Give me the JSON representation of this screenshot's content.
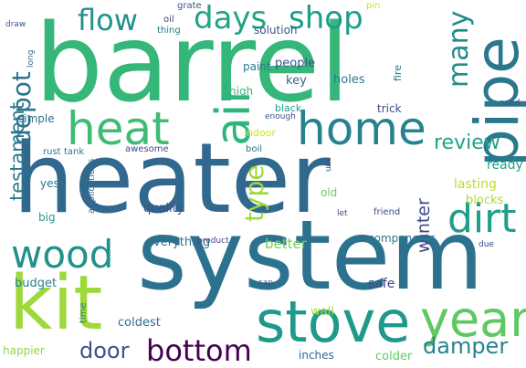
{
  "words": [
    {
      "text": "heater",
      "color": "#31688e"
    },
    {
      "text": "barrel",
      "color": "#35b779"
    },
    {
      "text": "system",
      "color": "#2c728e"
    },
    {
      "text": "kit",
      "color": "#9dd93b"
    },
    {
      "text": "stove",
      "color": "#1f9a8a"
    },
    {
      "text": "pipe",
      "color": "#2a788e"
    },
    {
      "text": "heat",
      "color": "#3fbc73"
    },
    {
      "text": "home",
      "color": "#26828e"
    },
    {
      "text": "air",
      "color": "#2fb47c"
    },
    {
      "text": "wood",
      "color": "#21918c"
    },
    {
      "text": "year",
      "color": "#5ec962"
    },
    {
      "text": "bottom",
      "color": "#440154"
    },
    {
      "text": "dirt",
      "color": "#1f9e89"
    },
    {
      "text": "days",
      "color": "#20a386"
    },
    {
      "text": "shop",
      "color": "#1e9b8a"
    },
    {
      "text": "flow",
      "color": "#21918c"
    },
    {
      "text": "depot",
      "color": "#2c728e"
    },
    {
      "text": "many",
      "color": "#228c8d"
    },
    {
      "text": "type",
      "color": "#9dd93b"
    },
    {
      "text": "damper",
      "color": "#25848e"
    },
    {
      "text": "door",
      "color": "#3b528b"
    },
    {
      "text": "testament",
      "color": "#2a788e"
    },
    {
      "text": "review",
      "color": "#20a386"
    },
    {
      "text": "winter",
      "color": "#3e4989"
    },
    {
      "text": "ready",
      "color": "#1fa188"
    },
    {
      "text": "lasting",
      "color": "#bddf26"
    },
    {
      "text": "blocks",
      "color": "#addc30"
    },
    {
      "text": "everything",
      "color": "#2c728e"
    },
    {
      "text": "quality",
      "color": "#3b528b"
    },
    {
      "text": "components",
      "color": "#2a788e"
    },
    {
      "text": "better",
      "color": "#73d056"
    },
    {
      "text": "safe",
      "color": "#414487"
    },
    {
      "text": "coldest",
      "color": "#2d708e"
    },
    {
      "text": "budget",
      "color": "#26828e"
    },
    {
      "text": "wall",
      "color": "#a5db36"
    },
    {
      "text": "happier",
      "color": "#8fd744"
    },
    {
      "text": "colder",
      "color": "#5ec962"
    },
    {
      "text": "inches",
      "color": "#31688e"
    },
    {
      "text": "people",
      "color": "#3b528b"
    },
    {
      "text": "paint",
      "color": "#2a788e"
    },
    {
      "text": "key",
      "color": "#31688e"
    },
    {
      "text": "holes",
      "color": "#2a788e"
    },
    {
      "text": "high",
      "color": "#35b779"
    },
    {
      "text": "black",
      "color": "#1f9e89"
    },
    {
      "text": "indoor",
      "color": "#d2e21b"
    },
    {
      "text": "trick",
      "color": "#3e4989"
    },
    {
      "text": "simple",
      "color": "#2c728e"
    },
    {
      "text": "yes",
      "color": "#2a788e"
    },
    {
      "text": "big",
      "color": "#1f9e89"
    },
    {
      "text": "old",
      "color": "#6ccd5a"
    },
    {
      "text": "solution",
      "color": "#3b528b"
    },
    {
      "text": "grate",
      "color": "#3b528b"
    },
    {
      "text": "oil",
      "color": "#414487"
    },
    {
      "text": "thing",
      "color": "#2a788e"
    },
    {
      "text": "pin",
      "color": "#d2e21b"
    },
    {
      "text": "fire",
      "color": "#2c728e"
    },
    {
      "text": "need",
      "color": "#3b528b"
    },
    {
      "text": "draw",
      "color": "#3b528b"
    },
    {
      "text": "long",
      "color": "#31688e"
    },
    {
      "text": "enough",
      "color": "#3b528b"
    },
    {
      "text": "rust",
      "color": "#2a788e"
    },
    {
      "text": "tank",
      "color": "#2a788e"
    },
    {
      "text": "awesome",
      "color": "#3e4989"
    },
    {
      "text": "boil",
      "color": "#2a788e"
    },
    {
      "text": "use",
      "color": "#3b528b"
    },
    {
      "text": "applications",
      "color": "#31688e"
    },
    {
      "text": "let",
      "color": "#3e4989"
    },
    {
      "text": "friend",
      "color": "#3e4989"
    },
    {
      "text": "product",
      "color": "#3e4989"
    },
    {
      "text": "due",
      "color": "#3e4989"
    },
    {
      "text": "time",
      "color": "#2a788e"
    },
    {
      "text": "sap",
      "color": "#3b528b"
    }
  ]
}
